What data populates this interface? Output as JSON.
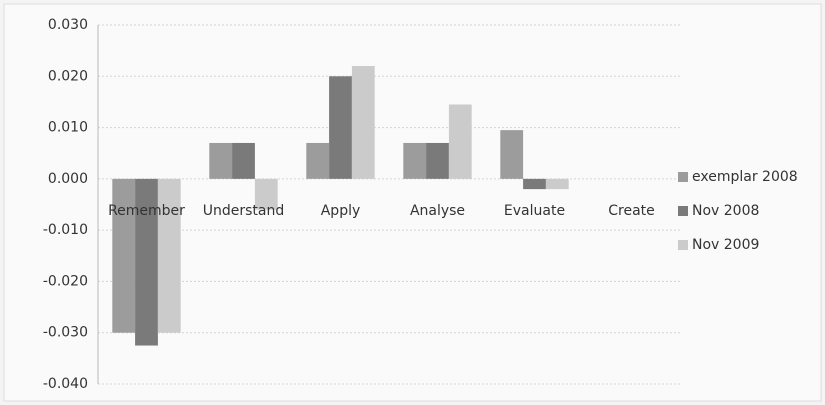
{
  "chart_data": {
    "type": "bar",
    "categories": [
      "Remember",
      "Understand",
      "Apply",
      "Analyse",
      "Evaluate",
      "Create"
    ],
    "series": [
      {
        "name": "exemplar 2008",
        "color": "#9c9c9c",
        "values": [
          -0.03,
          0.007,
          0.007,
          0.007,
          0.0095,
          0
        ]
      },
      {
        "name": "Nov 2008",
        "color": "#7a7a7a",
        "values": [
          -0.0325,
          0.007,
          0.02,
          0.007,
          -0.002,
          0
        ]
      },
      {
        "name": "Nov 2009",
        "color": "#cbcbcb",
        "values": [
          -0.03,
          -0.006,
          0.022,
          0.0145,
          -0.002,
          0
        ]
      }
    ],
    "ylim": [
      -0.04,
      0.03
    ],
    "yticks": [
      {
        "value": -0.04,
        "label": "-0.040"
      },
      {
        "value": -0.03,
        "label": "-0.030"
      },
      {
        "value": -0.02,
        "label": "-0.020"
      },
      {
        "value": -0.01,
        "label": "-0.010"
      },
      {
        "value": 0,
        "label": "0.000"
      },
      {
        "value": 0.01,
        "label": "0.010"
      },
      {
        "value": 0.02,
        "label": "0.020"
      },
      {
        "value": 0.03,
        "label": "0.030"
      }
    ],
    "grid": true,
    "legend": "right"
  }
}
